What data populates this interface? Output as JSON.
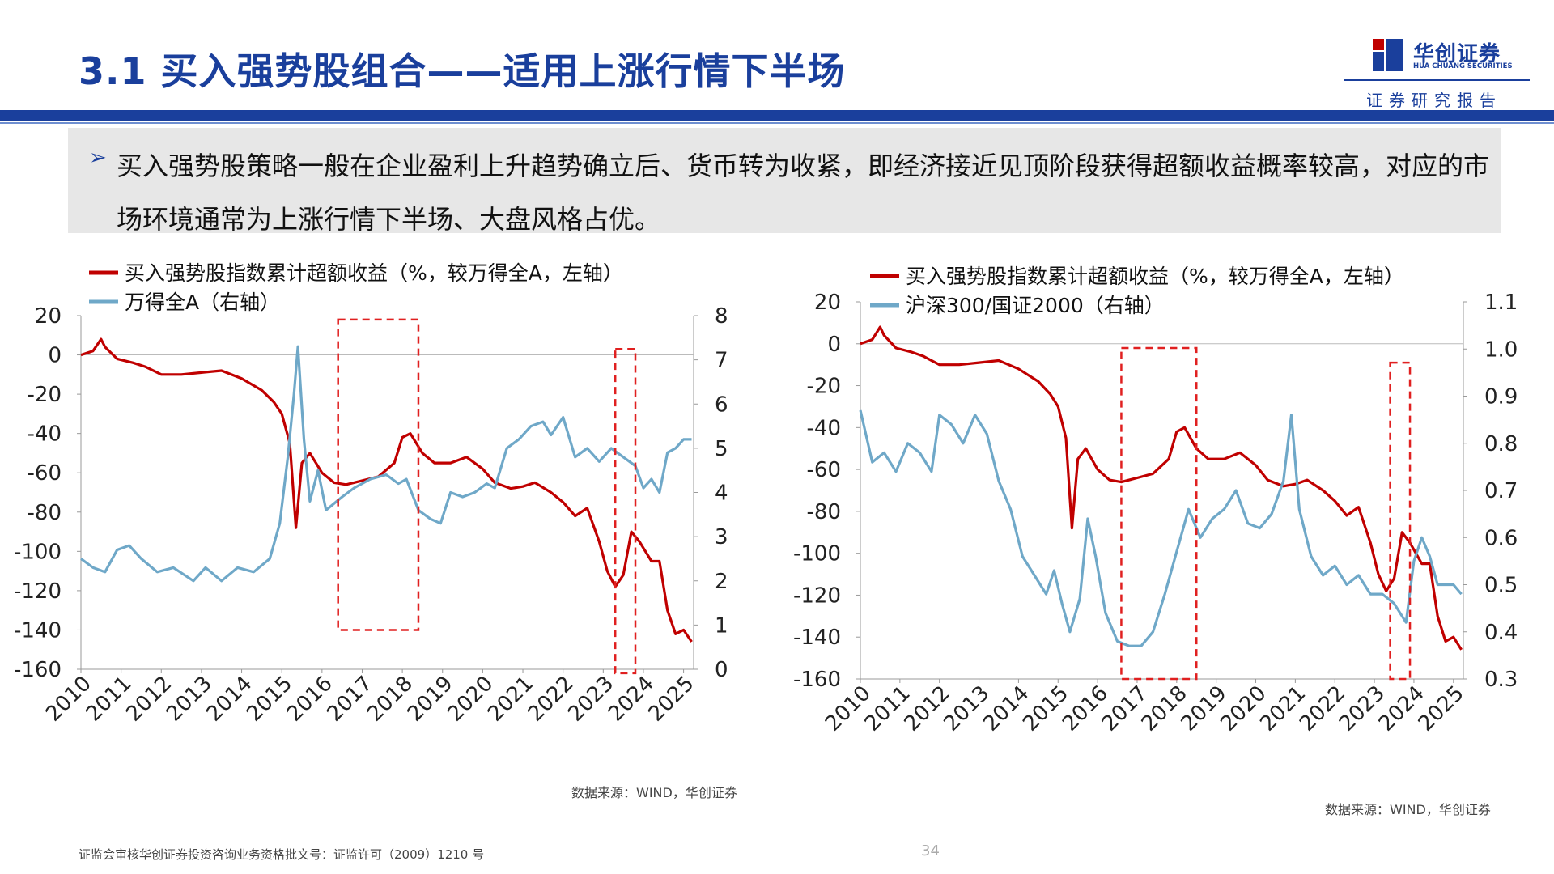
{
  "header": {
    "title": "3.1 买入强势股组合——适用上涨行情下半场",
    "logo_name": "华创证券",
    "logo_en": "HUA CHUANG SECURITIES",
    "tagline": "证券研究报告"
  },
  "bullet": {
    "text": "买入强势股策略一般在企业盈利上升趋势确立后、货币转为收紧，即经济接近见顶阶段获得超额收益概率较高，对应的市场环境通常为上涨行情下半场、大盘风格占优。"
  },
  "chart_data": [
    {
      "type": "line",
      "x_ticks": [
        "2010",
        "2011",
        "2012",
        "2013",
        "2014",
        "2015",
        "2016",
        "2017",
        "2018",
        "2019",
        "2020",
        "2021",
        "2022",
        "2023",
        "2024",
        "2025"
      ],
      "ylim_left": [
        -160,
        20
      ],
      "yticks_left": [
        20,
        0,
        -20,
        -40,
        -60,
        -80,
        -100,
        -120,
        -140,
        -160
      ],
      "ylim_right": [
        0,
        8000
      ],
      "yticks_right": [
        8000,
        7000,
        6000,
        5000,
        4000,
        3000,
        2000,
        1000,
        0
      ],
      "highlight_ranges": [
        {
          "x0": 2016.4,
          "x1": 2018.4,
          "y0": -140,
          "y1": 18
        },
        {
          "x0": 2023.3,
          "x1": 2023.8,
          "y0": -162,
          "y1": 3
        }
      ],
      "series": [
        {
          "name": "买入强势股指数累计超额收益（%，较万得全A，左轴）",
          "axis": "left",
          "color": "#c00000",
          "points": [
            [
              2010.0,
              0
            ],
            [
              2010.3,
              2
            ],
            [
              2010.5,
              8
            ],
            [
              2010.6,
              4
            ],
            [
              2010.9,
              -2
            ],
            [
              2011.3,
              -4
            ],
            [
              2011.6,
              -6
            ],
            [
              2012.0,
              -10
            ],
            [
              2012.5,
              -10
            ],
            [
              2013.0,
              -9
            ],
            [
              2013.5,
              -8
            ],
            [
              2014.0,
              -12
            ],
            [
              2014.5,
              -18
            ],
            [
              2014.8,
              -24
            ],
            [
              2015.0,
              -30
            ],
            [
              2015.2,
              -45
            ],
            [
              2015.35,
              -88
            ],
            [
              2015.5,
              -55
            ],
            [
              2015.7,
              -50
            ],
            [
              2016.0,
              -60
            ],
            [
              2016.3,
              -65
            ],
            [
              2016.6,
              -66
            ],
            [
              2017.0,
              -64
            ],
            [
              2017.4,
              -62
            ],
            [
              2017.8,
              -55
            ],
            [
              2018.0,
              -42
            ],
            [
              2018.2,
              -40
            ],
            [
              2018.5,
              -50
            ],
            [
              2018.8,
              -55
            ],
            [
              2019.2,
              -55
            ],
            [
              2019.6,
              -52
            ],
            [
              2020.0,
              -58
            ],
            [
              2020.3,
              -65
            ],
            [
              2020.7,
              -68
            ],
            [
              2021.0,
              -67
            ],
            [
              2021.3,
              -65
            ],
            [
              2021.7,
              -70
            ],
            [
              2022.0,
              -75
            ],
            [
              2022.3,
              -82
            ],
            [
              2022.6,
              -78
            ],
            [
              2022.9,
              -95
            ],
            [
              2023.1,
              -110
            ],
            [
              2023.3,
              -118
            ],
            [
              2023.5,
              -112
            ],
            [
              2023.7,
              -90
            ],
            [
              2023.9,
              -95
            ],
            [
              2024.2,
              -105
            ],
            [
              2024.4,
              -105
            ],
            [
              2024.6,
              -130
            ],
            [
              2024.8,
              -142
            ],
            [
              2025.0,
              -140
            ],
            [
              2025.2,
              -146
            ]
          ]
        },
        {
          "name": "万得全A（右轴）",
          "axis": "right",
          "color": "#6fa8c8",
          "points": [
            [
              2010.0,
              2500
            ],
            [
              2010.3,
              2300
            ],
            [
              2010.6,
              2200
            ],
            [
              2010.9,
              2700
            ],
            [
              2011.2,
              2800
            ],
            [
              2011.5,
              2500
            ],
            [
              2011.9,
              2200
            ],
            [
              2012.3,
              2300
            ],
            [
              2012.8,
              2000
            ],
            [
              2013.1,
              2300
            ],
            [
              2013.5,
              2000
            ],
            [
              2013.9,
              2300
            ],
            [
              2014.3,
              2200
            ],
            [
              2014.7,
              2500
            ],
            [
              2014.95,
              3300
            ],
            [
              2015.15,
              4800
            ],
            [
              2015.3,
              6200
            ],
            [
              2015.4,
              7300
            ],
            [
              2015.55,
              5200
            ],
            [
              2015.7,
              3800
            ],
            [
              2015.9,
              4500
            ],
            [
              2016.1,
              3600
            ],
            [
              2016.5,
              3900
            ],
            [
              2016.8,
              4100
            ],
            [
              2017.2,
              4300
            ],
            [
              2017.6,
              4400
            ],
            [
              2017.9,
              4200
            ],
            [
              2018.1,
              4300
            ],
            [
              2018.4,
              3600
            ],
            [
              2018.7,
              3400
            ],
            [
              2018.95,
              3300
            ],
            [
              2019.2,
              4000
            ],
            [
              2019.5,
              3900
            ],
            [
              2019.8,
              4000
            ],
            [
              2020.1,
              4200
            ],
            [
              2020.3,
              4100
            ],
            [
              2020.6,
              5000
            ],
            [
              2020.9,
              5200
            ],
            [
              2021.2,
              5500
            ],
            [
              2021.5,
              5600
            ],
            [
              2021.7,
              5300
            ],
            [
              2022.0,
              5700
            ],
            [
              2022.3,
              4800
            ],
            [
              2022.6,
              5000
            ],
            [
              2022.9,
              4700
            ],
            [
              2023.2,
              5000
            ],
            [
              2023.5,
              4800
            ],
            [
              2023.8,
              4600
            ],
            [
              2024.0,
              4100
            ],
            [
              2024.2,
              4300
            ],
            [
              2024.4,
              4000
            ],
            [
              2024.6,
              4900
            ],
            [
              2024.8,
              5000
            ],
            [
              2025.0,
              5200
            ],
            [
              2025.2,
              5200
            ]
          ]
        }
      ]
    },
    {
      "type": "line",
      "x_ticks": [
        "2010",
        "2011",
        "2012",
        "2013",
        "2014",
        "2015",
        "2016",
        "2017",
        "2018",
        "2019",
        "2020",
        "2021",
        "2022",
        "2023",
        "2024",
        "2025"
      ],
      "ylim_left": [
        -160,
        20
      ],
      "yticks_left": [
        20,
        0,
        -20,
        -40,
        -60,
        -80,
        -100,
        -120,
        -140,
        -160
      ],
      "ylim_right": [
        0.3,
        1.1
      ],
      "yticks_right": [
        1.1,
        1.0,
        0.9,
        0.8,
        0.7,
        0.6,
        0.5,
        0.4,
        0.3
      ],
      "highlight_ranges": [
        {
          "x0": 2016.6,
          "x1": 2018.5,
          "y0": -160,
          "y1": -2
        },
        {
          "x0": 2023.4,
          "x1": 2023.9,
          "y0": -160,
          "y1": -9
        }
      ],
      "series": [
        {
          "name": "买入强势股指数累计超额收益（%，较万得全A，左轴）",
          "axis": "left",
          "color": "#c00000",
          "points": [
            [
              2010.0,
              0
            ],
            [
              2010.3,
              2
            ],
            [
              2010.5,
              8
            ],
            [
              2010.6,
              4
            ],
            [
              2010.9,
              -2
            ],
            [
              2011.3,
              -4
            ],
            [
              2011.6,
              -6
            ],
            [
              2012.0,
              -10
            ],
            [
              2012.5,
              -10
            ],
            [
              2013.0,
              -9
            ],
            [
              2013.5,
              -8
            ],
            [
              2014.0,
              -12
            ],
            [
              2014.5,
              -18
            ],
            [
              2014.8,
              -24
            ],
            [
              2015.0,
              -30
            ],
            [
              2015.2,
              -45
            ],
            [
              2015.35,
              -88
            ],
            [
              2015.5,
              -55
            ],
            [
              2015.7,
              -50
            ],
            [
              2016.0,
              -60
            ],
            [
              2016.3,
              -65
            ],
            [
              2016.6,
              -66
            ],
            [
              2017.0,
              -64
            ],
            [
              2017.4,
              -62
            ],
            [
              2017.8,
              -55
            ],
            [
              2018.0,
              -42
            ],
            [
              2018.2,
              -40
            ],
            [
              2018.5,
              -50
            ],
            [
              2018.8,
              -55
            ],
            [
              2019.2,
              -55
            ],
            [
              2019.6,
              -52
            ],
            [
              2020.0,
              -58
            ],
            [
              2020.3,
              -65
            ],
            [
              2020.7,
              -68
            ],
            [
              2021.0,
              -67
            ],
            [
              2021.3,
              -65
            ],
            [
              2021.7,
              -70
            ],
            [
              2022.0,
              -75
            ],
            [
              2022.3,
              -82
            ],
            [
              2022.6,
              -78
            ],
            [
              2022.9,
              -95
            ],
            [
              2023.1,
              -110
            ],
            [
              2023.3,
              -118
            ],
            [
              2023.5,
              -112
            ],
            [
              2023.7,
              -90
            ],
            [
              2023.9,
              -95
            ],
            [
              2024.2,
              -105
            ],
            [
              2024.4,
              -105
            ],
            [
              2024.6,
              -130
            ],
            [
              2024.8,
              -142
            ],
            [
              2025.0,
              -140
            ],
            [
              2025.2,
              -146
            ]
          ]
        },
        {
          "name": "沪深300/国证2000（右轴）",
          "axis": "right",
          "color": "#6fa8c8",
          "points": [
            [
              2010.0,
              0.87
            ],
            [
              2010.3,
              0.76
            ],
            [
              2010.6,
              0.78
            ],
            [
              2010.9,
              0.74
            ],
            [
              2011.2,
              0.8
            ],
            [
              2011.5,
              0.78
            ],
            [
              2011.8,
              0.74
            ],
            [
              2012.0,
              0.86
            ],
            [
              2012.3,
              0.84
            ],
            [
              2012.6,
              0.8
            ],
            [
              2012.9,
              0.86
            ],
            [
              2013.2,
              0.82
            ],
            [
              2013.5,
              0.72
            ],
            [
              2013.8,
              0.66
            ],
            [
              2014.1,
              0.56
            ],
            [
              2014.4,
              0.52
            ],
            [
              2014.7,
              0.48
            ],
            [
              2014.9,
              0.53
            ],
            [
              2015.1,
              0.46
            ],
            [
              2015.3,
              0.4
            ],
            [
              2015.55,
              0.47
            ],
            [
              2015.75,
              0.64
            ],
            [
              2015.95,
              0.56
            ],
            [
              2016.2,
              0.44
            ],
            [
              2016.5,
              0.38
            ],
            [
              2016.8,
              0.37
            ],
            [
              2017.1,
              0.37
            ],
            [
              2017.4,
              0.4
            ],
            [
              2017.7,
              0.48
            ],
            [
              2018.0,
              0.57
            ],
            [
              2018.3,
              0.66
            ],
            [
              2018.6,
              0.6
            ],
            [
              2018.9,
              0.64
            ],
            [
              2019.2,
              0.66
            ],
            [
              2019.5,
              0.7
            ],
            [
              2019.8,
              0.63
            ],
            [
              2020.1,
              0.62
            ],
            [
              2020.4,
              0.65
            ],
            [
              2020.7,
              0.72
            ],
            [
              2020.9,
              0.86
            ],
            [
              2021.1,
              0.66
            ],
            [
              2021.4,
              0.56
            ],
            [
              2021.7,
              0.52
            ],
            [
              2022.0,
              0.54
            ],
            [
              2022.3,
              0.5
            ],
            [
              2022.6,
              0.52
            ],
            [
              2022.9,
              0.48
            ],
            [
              2023.2,
              0.48
            ],
            [
              2023.5,
              0.46
            ],
            [
              2023.8,
              0.42
            ],
            [
              2024.0,
              0.55
            ],
            [
              2024.2,
              0.6
            ],
            [
              2024.4,
              0.56
            ],
            [
              2024.6,
              0.5
            ],
            [
              2024.8,
              0.5
            ],
            [
              2025.0,
              0.5
            ],
            [
              2025.2,
              0.48
            ]
          ]
        }
      ]
    }
  ],
  "sources": [
    "数据来源：WIND，华创证券",
    "数据来源：WIND，华创证券"
  ],
  "footer": {
    "disclaimer": "证监会审核华创证券投资咨询业务资格批文号：证监许可（2009）1210 号",
    "page": "34"
  }
}
